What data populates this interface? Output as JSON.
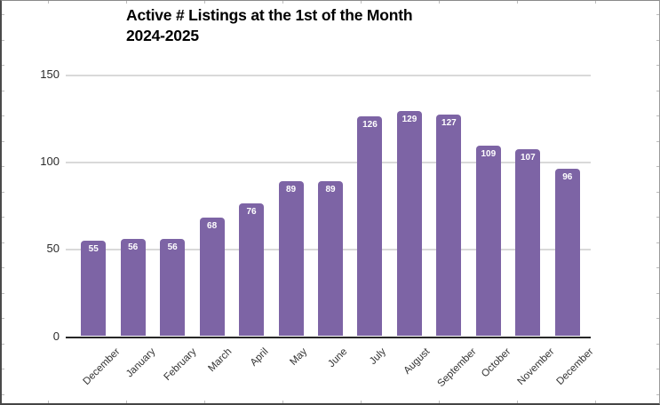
{
  "chart": {
    "title_line1": "Active # Listings at the 1st of the Month",
    "title_line2": "2024-2025"
  },
  "chart_data": {
    "type": "bar",
    "title": "Active # Listings at the 1st of the Month 2024-2025",
    "categories": [
      "December",
      "January",
      "February",
      "March",
      "April",
      "May",
      "June",
      "July",
      "August",
      "September",
      "October",
      "November",
      "December"
    ],
    "values": [
      55,
      56,
      56,
      68,
      76,
      89,
      89,
      126,
      129,
      127,
      109,
      107,
      96
    ],
    "xlabel": "",
    "ylabel": "",
    "ylim": [
      0,
      150
    ],
    "yticks": [
      0,
      50,
      100,
      150
    ],
    "grid": true,
    "legend": false,
    "bar_color": "#7d64a5",
    "bar_label_color": "#ffffff",
    "axis_color": "#262626",
    "gridline_color": "#d9d9d9",
    "tick_label_color": "#333333"
  }
}
